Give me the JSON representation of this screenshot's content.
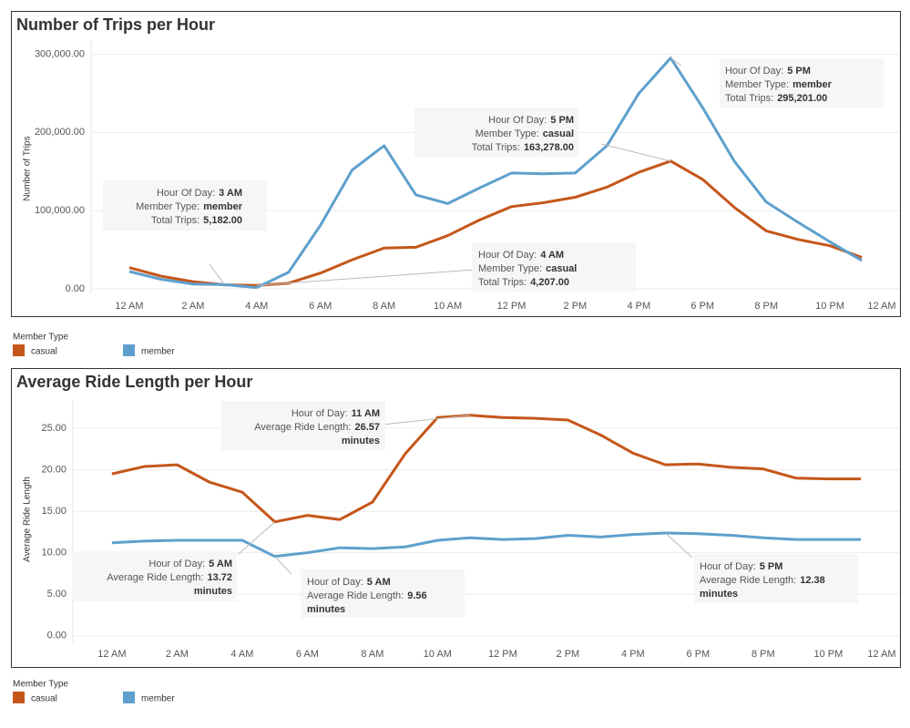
{
  "chart_data": [
    {
      "type": "line",
      "title": "Number of Trips per Hour",
      "y_label": "Number of Trips",
      "x": [
        0,
        1,
        2,
        3,
        4,
        5,
        6,
        7,
        8,
        9,
        10,
        11,
        12,
        13,
        14,
        15,
        16,
        17,
        18,
        19,
        20,
        21,
        22,
        23
      ],
      "xlim": [
        -1.2,
        24.2
      ],
      "xticks": [
        {
          "value": 0,
          "label": "12 AM"
        },
        {
          "value": 2,
          "label": "2 AM"
        },
        {
          "value": 4,
          "label": "4 AM"
        },
        {
          "value": 6,
          "label": "6 AM"
        },
        {
          "value": 8,
          "label": "8 AM"
        },
        {
          "value": 10,
          "label": "10 AM"
        },
        {
          "value": 12,
          "label": "12 PM"
        },
        {
          "value": 14,
          "label": "2 PM"
        },
        {
          "value": 16,
          "label": "4 PM"
        },
        {
          "value": 18,
          "label": "6 PM"
        },
        {
          "value": 20,
          "label": "8 PM"
        },
        {
          "value": 22,
          "label": "10 PM"
        },
        {
          "value": 24,
          "label": "12 AM"
        }
      ],
      "ylim": [
        -6000,
        317000
      ],
      "yticks": [
        {
          "value": 0,
          "label": "0.00"
        },
        {
          "value": 100000,
          "label": "100,000.00"
        },
        {
          "value": 200000,
          "label": "200,000.00"
        },
        {
          "value": 300000,
          "label": "300,000.00"
        }
      ],
      "grid": true,
      "legend_title": "Member Type",
      "series": [
        {
          "name": "casual",
          "color": "#c5561a",
          "values": [
            27000,
            16000,
            9000,
            5000,
            4207,
            7000,
            20000,
            37000,
            52000,
            53000,
            68000,
            88000,
            105000,
            110000,
            117000,
            130000,
            149000,
            163278,
            140000,
            104000,
            74000,
            63000,
            55000,
            40000
          ]
        },
        {
          "name": "member",
          "color": "#5ea0cd",
          "values": [
            22000,
            12000,
            6000,
            5182,
            1500,
            21000,
            81000,
            152000,
            183000,
            120000,
            109000,
            129000,
            148000,
            147000,
            148000,
            183000,
            250000,
            295201,
            232000,
            163000,
            111000,
            85000,
            60000,
            36000
          ]
        }
      ],
      "annotations": [
        {
          "lines": [
            {
              "text": "Hour Of Day:",
              "bold": "5 PM"
            },
            {
              "text": "Member Type:",
              "bold": "member"
            },
            {
              "text": "Total Trips:",
              "bold": "295,201.00"
            }
          ]
        },
        {
          "lines": [
            {
              "text": "Hour Of Day:",
              "bold": "5 PM"
            },
            {
              "text": "Member Type:",
              "bold": "casual"
            },
            {
              "text": "Total Trips:",
              "bold": "163,278.00"
            }
          ]
        },
        {
          "lines": [
            {
              "text": "Hour Of Day:",
              "bold": "3 AM"
            },
            {
              "text": "Member Type:",
              "bold": "member"
            },
            {
              "text": "Total Trips:",
              "bold": "5,182.00"
            }
          ]
        },
        {
          "lines": [
            {
              "text": "Hour Of Day:",
              "bold": "4 AM"
            },
            {
              "text": "Member Type:",
              "bold": "casual"
            },
            {
              "text": "Total Trips:",
              "bold": "4,207.00"
            }
          ]
        }
      ]
    },
    {
      "type": "line",
      "title": "Average Ride Length per Hour",
      "y_label": "Average Ride Length",
      "x": [
        0,
        1,
        2,
        3,
        4,
        5,
        6,
        7,
        8,
        9,
        10,
        11,
        12,
        13,
        14,
        15,
        16,
        17,
        18,
        19,
        20,
        21,
        22,
        23
      ],
      "xlim": [
        -1.2,
        24.2
      ],
      "xticks": [
        {
          "value": 0,
          "label": "12 AM"
        },
        {
          "value": 2,
          "label": "2 AM"
        },
        {
          "value": 4,
          "label": "4 AM"
        },
        {
          "value": 6,
          "label": "6 AM"
        },
        {
          "value": 8,
          "label": "8 AM"
        },
        {
          "value": 10,
          "label": "10 AM"
        },
        {
          "value": 12,
          "label": "12 PM"
        },
        {
          "value": 14,
          "label": "2 PM"
        },
        {
          "value": 16,
          "label": "4 PM"
        },
        {
          "value": 18,
          "label": "6 PM"
        },
        {
          "value": 20,
          "label": "8 PM"
        },
        {
          "value": 22,
          "label": "10 PM"
        },
        {
          "value": 24,
          "label": "12 AM"
        }
      ],
      "ylim": [
        -0.8,
        28.3
      ],
      "yticks": [
        {
          "value": 0,
          "label": "0.00"
        },
        {
          "value": 5,
          "label": "5.00"
        },
        {
          "value": 10,
          "label": "10.00"
        },
        {
          "value": 15,
          "label": "15.00"
        },
        {
          "value": 20,
          "label": "20.00"
        },
        {
          "value": 25,
          "label": "25.00"
        }
      ],
      "grid": true,
      "legend_title": "Member Type",
      "series": [
        {
          "name": "casual",
          "color": "#c5561a",
          "values": [
            19.5,
            20.4,
            20.6,
            18.5,
            17.3,
            13.72,
            14.5,
            14.0,
            16.1,
            21.9,
            26.3,
            26.57,
            26.3,
            26.2,
            26.0,
            24.2,
            22.0,
            20.6,
            20.7,
            20.3,
            20.1,
            19.0,
            18.9,
            18.9
          ]
        },
        {
          "name": "member",
          "color": "#5ea0cd",
          "values": [
            11.2,
            11.4,
            11.5,
            11.5,
            11.5,
            9.56,
            10.0,
            10.6,
            10.5,
            10.7,
            11.5,
            11.8,
            11.6,
            11.7,
            12.1,
            11.9,
            12.2,
            12.38,
            12.3,
            12.1,
            11.8,
            11.6,
            11.6,
            11.6
          ]
        }
      ],
      "annotations": [
        {
          "lines": [
            {
              "text": "Hour of Day:",
              "bold": "11 AM"
            },
            {
              "text": "Average Ride Length:",
              "bold": "26.57"
            },
            {
              "bold": "minutes"
            }
          ]
        },
        {
          "lines": [
            {
              "text": "Hour of Day:",
              "bold": "5 AM"
            },
            {
              "text": "Average Ride Length:",
              "bold": "13.72"
            },
            {
              "bold": "minutes"
            }
          ]
        },
        {
          "lines": [
            {
              "text": "Hour of Day:",
              "bold": "5 AM"
            },
            {
              "text": "Average Ride Length:",
              "bold": "9.56"
            },
            {
              "bold": "minutes"
            }
          ]
        },
        {
          "lines": [
            {
              "text": "Hour of Day:",
              "bold": "5 PM"
            },
            {
              "text": "Average Ride Length:",
              "bold": "12.38"
            },
            {
              "bold": "minutes"
            }
          ]
        }
      ]
    }
  ]
}
